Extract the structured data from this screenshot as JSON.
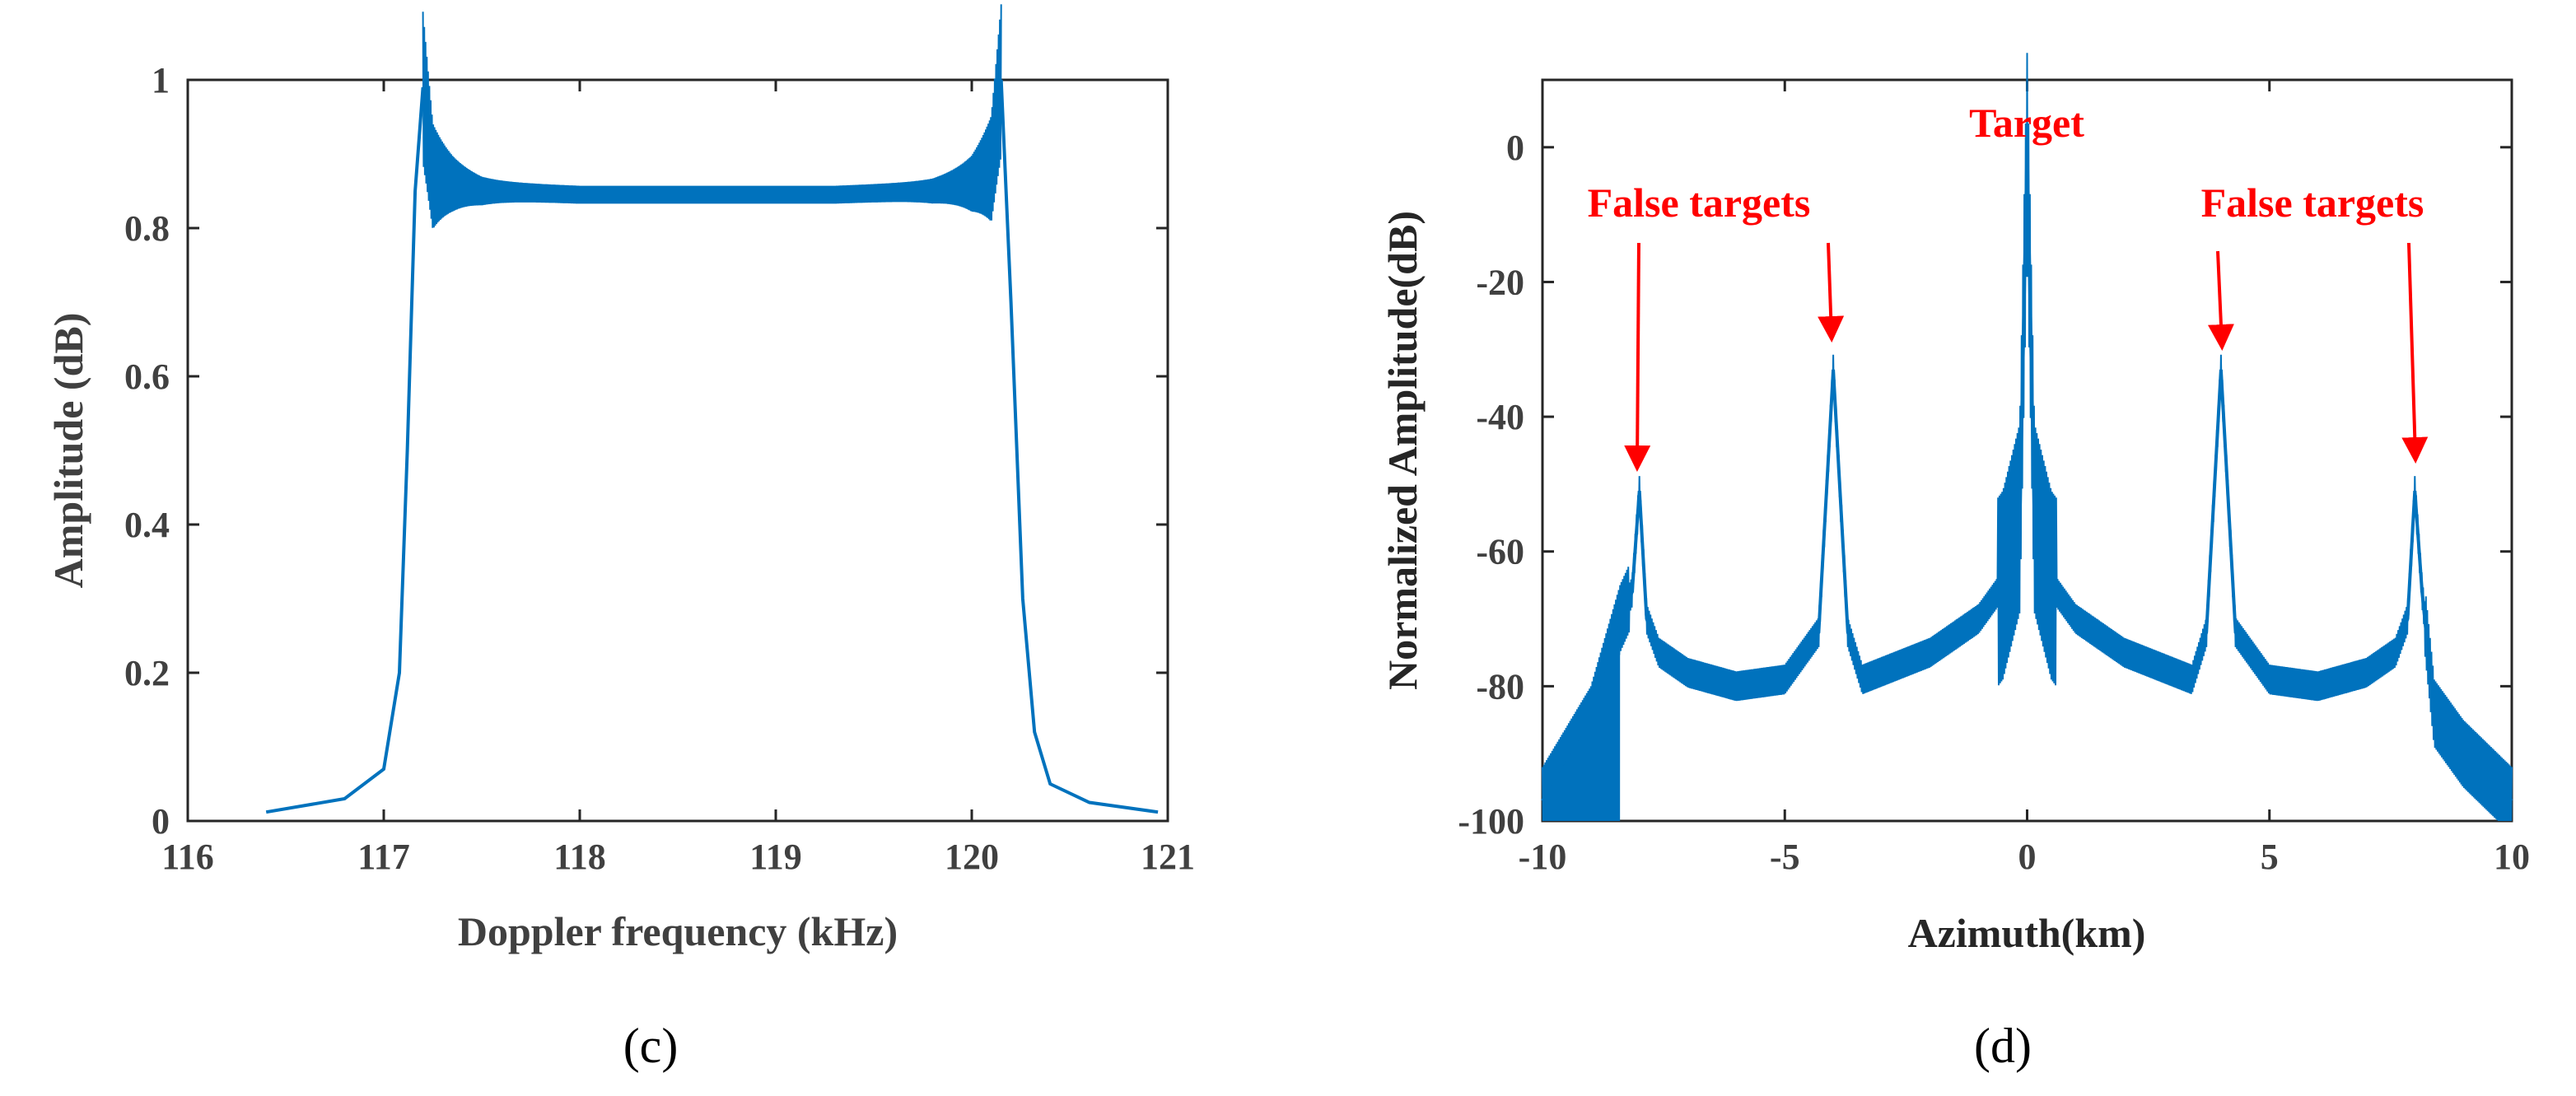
{
  "chart_data": [
    {
      "type": "line",
      "panel_label": "(c)",
      "xlabel": "Doppler frequency (kHz)",
      "ylabel": "Amplitude (dB)",
      "xlim": [
        116,
        121
      ],
      "ylim": [
        0,
        1
      ],
      "xticks": [
        "116",
        "117",
        "118",
        "119",
        "120",
        "121"
      ],
      "yticks": [
        "0",
        "0.2",
        "0.4",
        "0.6",
        "0.8",
        "1"
      ],
      "line_color": "#0072bd",
      "series": [
        {
          "name": "amplitude",
          "x": [
            116.4,
            116.8,
            117.0,
            117.08,
            117.12,
            117.16,
            117.2,
            117.25,
            117.35,
            117.5,
            118.0,
            118.65,
            119.3,
            119.8,
            120.0,
            120.1,
            120.15,
            120.2,
            120.26,
            120.32,
            120.4,
            120.6,
            120.95
          ],
          "y": [
            0.012,
            0.03,
            0.07,
            0.2,
            0.5,
            0.85,
            0.99,
            0.87,
            0.86,
            0.85,
            0.845,
            0.845,
            0.845,
            0.85,
            0.86,
            0.88,
            1.0,
            0.7,
            0.3,
            0.12,
            0.05,
            0.025,
            0.012
          ]
        }
      ]
    },
    {
      "type": "line",
      "panel_label": "(d)",
      "xlabel": "Azimuth(km)",
      "ylabel": "Normalized Amplitude(dB)",
      "xlim": [
        -10,
        10
      ],
      "ylim": [
        -100,
        10
      ],
      "xticks": [
        "-10",
        "-5",
        "0",
        "5",
        "10"
      ],
      "yticks": [
        "-100",
        "-80",
        "-60",
        "-40",
        "-20",
        "0"
      ],
      "line_color": "#0072bd",
      "annotations": [
        "False targets",
        "Target",
        "False targets"
      ],
      "series": [
        {
          "name": "normalized amplitude",
          "x": [
            -10,
            -9,
            -8.4,
            -8.15,
            -8.0,
            -7.85,
            -7.6,
            -7,
            -6,
            -5,
            -4.3,
            -4.0,
            -3.7,
            -3.4,
            -2,
            -1,
            -0.5,
            -0.15,
            0,
            0.15,
            0.5,
            1,
            2,
            3.4,
            3.7,
            4.0,
            4.3,
            5,
            6,
            7,
            7.6,
            7.85,
            8.0,
            8.15,
            8.4,
            9,
            10
          ],
          "y": [
            -97,
            -85,
            -70,
            -66,
            -51,
            -70,
            -75,
            -78,
            -80,
            -79,
            -72,
            -33,
            -72,
            -79,
            -75,
            -70,
            -65,
            -55,
            0,
            -55,
            -65,
            -70,
            -75,
            -79,
            -72,
            -33,
            -72,
            -79,
            -80,
            -78,
            -75,
            -70,
            -51,
            -66,
            -84,
            -90,
            -97
          ]
        }
      ]
    }
  ]
}
